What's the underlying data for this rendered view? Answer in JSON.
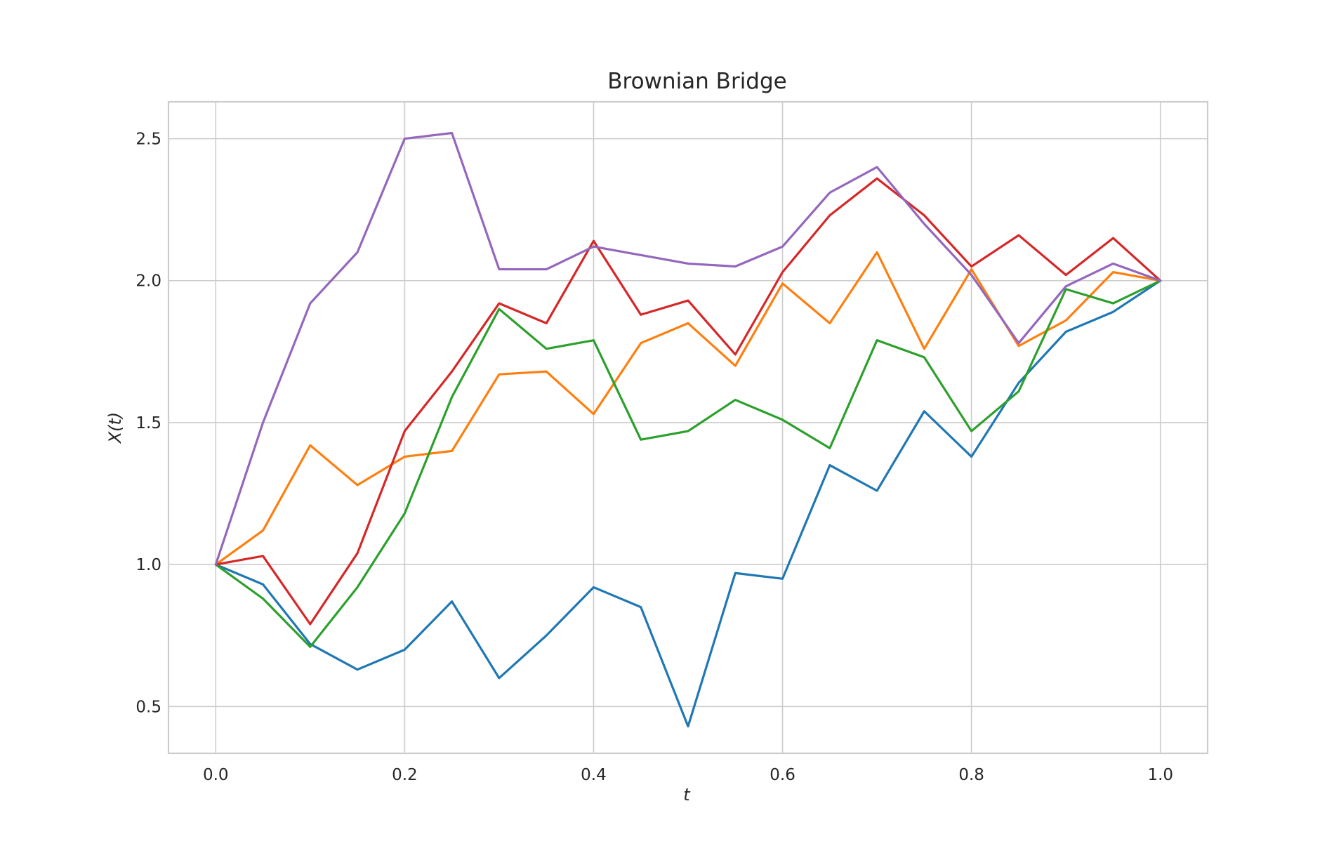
{
  "chart_data": {
    "type": "line",
    "title": "Brownian Bridge",
    "xlabel": "t",
    "ylabel": "X(t)",
    "xlim": [
      -0.05,
      1.05
    ],
    "ylim": [
      0.335,
      2.63
    ],
    "xticks": [
      0.0,
      0.2,
      0.4,
      0.6,
      0.8,
      1.0
    ],
    "xtick_labels": [
      "0.0",
      "0.2",
      "0.4",
      "0.6",
      "0.8",
      "1.0"
    ],
    "yticks": [
      0.5,
      1.0,
      1.5,
      2.0,
      2.5
    ],
    "ytick_labels": [
      "0.5",
      "1.0",
      "1.5",
      "2.0",
      "2.5"
    ],
    "grid": true,
    "legend": "none",
    "x": [
      0.0,
      0.05,
      0.1,
      0.15,
      0.2,
      0.25,
      0.3,
      0.35,
      0.4,
      0.45,
      0.5,
      0.55,
      0.6,
      0.65,
      0.7,
      0.75,
      0.8,
      0.85,
      0.9,
      0.95,
      1.0
    ],
    "series": [
      {
        "color": "#1f77b4",
        "values": [
          1.0,
          0.93,
          0.72,
          0.63,
          0.7,
          0.87,
          0.6,
          0.75,
          0.92,
          0.85,
          0.43,
          0.97,
          0.95,
          1.35,
          1.26,
          1.54,
          1.38,
          1.64,
          1.82,
          1.89,
          2.0
        ]
      },
      {
        "color": "#ff7f0e",
        "values": [
          1.0,
          1.12,
          1.42,
          1.28,
          1.38,
          1.4,
          1.67,
          1.68,
          1.53,
          1.78,
          1.85,
          1.7,
          1.99,
          1.85,
          2.1,
          1.76,
          2.04,
          1.77,
          1.86,
          2.03,
          2.0
        ]
      },
      {
        "color": "#2ca02c",
        "values": [
          1.0,
          0.88,
          0.71,
          0.92,
          1.18,
          1.59,
          1.9,
          1.76,
          1.79,
          1.44,
          1.47,
          1.58,
          1.51,
          1.41,
          1.79,
          1.73,
          1.47,
          1.61,
          1.97,
          1.92,
          2.0
        ]
      },
      {
        "color": "#d62728",
        "values": [
          1.0,
          1.03,
          0.79,
          1.04,
          1.47,
          1.68,
          1.92,
          1.85,
          2.14,
          1.88,
          1.93,
          1.74,
          2.03,
          2.23,
          2.36,
          2.23,
          2.05,
          2.16,
          2.02,
          2.15,
          2.0
        ]
      },
      {
        "color": "#9467bd",
        "values": [
          1.0,
          1.5,
          1.92,
          2.1,
          2.5,
          2.52,
          2.04,
          2.04,
          2.12,
          2.09,
          2.06,
          2.05,
          2.12,
          2.31,
          2.4,
          2.2,
          2.02,
          1.78,
          1.98,
          2.06,
          2.0
        ]
      }
    ]
  }
}
